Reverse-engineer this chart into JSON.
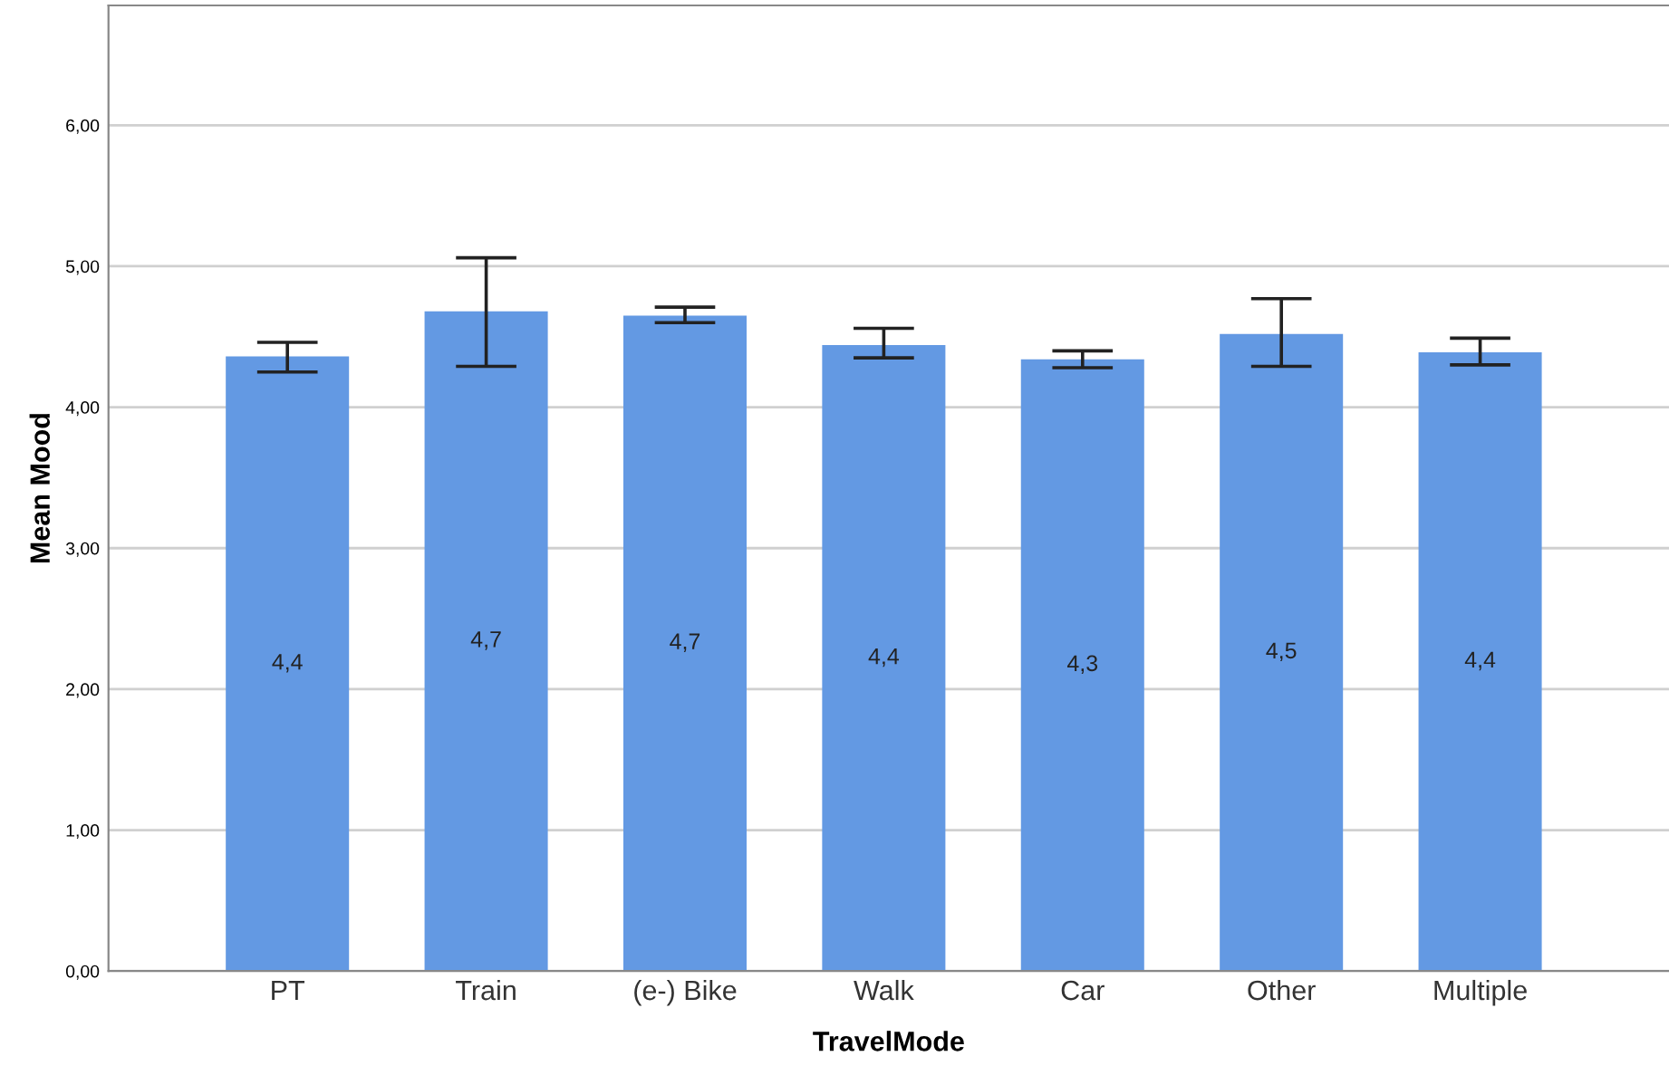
{
  "chart_data": {
    "type": "bar",
    "xlabel": "TravelMode",
    "ylabel": "Mean Mood",
    "categories": [
      "PT",
      "Train",
      "(e-) Bike",
      "Walk",
      "Car",
      "Other",
      "Multiple"
    ],
    "values": [
      4.36,
      4.68,
      4.65,
      4.44,
      4.34,
      4.52,
      4.39
    ],
    "errors": [
      [
        4.25,
        4.46
      ],
      [
        4.29,
        5.06
      ],
      [
        4.6,
        4.71
      ],
      [
        4.35,
        4.56
      ],
      [
        4.28,
        4.4
      ],
      [
        4.29,
        4.77
      ],
      [
        4.3,
        4.49
      ]
    ],
    "value_labels": [
      "4,4",
      "4,7",
      "4,7",
      "4,4",
      "4,3",
      "4,5",
      "4,4"
    ],
    "color": "#6399e3",
    "ylim": [
      0,
      6.85
    ],
    "yticks": [
      {
        "value": 0,
        "label": "0,00"
      },
      {
        "value": 1,
        "label": "1,00"
      },
      {
        "value": 2,
        "label": "2,00"
      },
      {
        "value": 3,
        "label": "3,00"
      },
      {
        "value": 4,
        "label": "4,00"
      },
      {
        "value": 5,
        "label": "5,00"
      },
      {
        "value": 6,
        "label": "6,00"
      }
    ],
    "grid": "y"
  }
}
